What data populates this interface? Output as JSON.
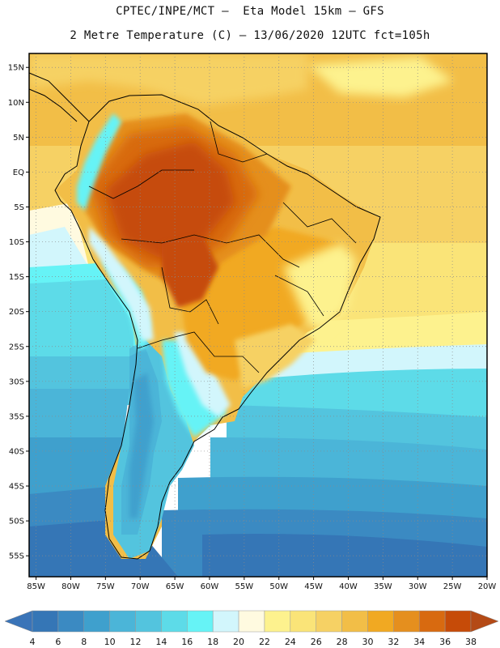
{
  "header": {
    "line1": "CPTEC/INPE/MCT –  Eta Model 15km – GFS",
    "line2": "2 Metre Temperature (C) – 13/06/2020 12UTC fct=105h"
  },
  "map": {
    "lat_range": [
      -58,
      17
    ],
    "lon_range": [
      -86,
      -20
    ],
    "lat_labels": [
      {
        "value": 15,
        "text": "15N"
      },
      {
        "value": 10,
        "text": "10N"
      },
      {
        "value": 5,
        "text": "5N"
      },
      {
        "value": 0,
        "text": "EQ"
      },
      {
        "value": -5,
        "text": "5S"
      },
      {
        "value": -10,
        "text": "10S"
      },
      {
        "value": -15,
        "text": "15S"
      },
      {
        "value": -20,
        "text": "20S"
      },
      {
        "value": -25,
        "text": "25S"
      },
      {
        "value": -30,
        "text": "30S"
      },
      {
        "value": -35,
        "text": "35S"
      },
      {
        "value": -40,
        "text": "40S"
      },
      {
        "value": -45,
        "text": "45S"
      },
      {
        "value": -50,
        "text": "50S"
      },
      {
        "value": -55,
        "text": "55S"
      }
    ],
    "lon_labels": [
      {
        "value": -85,
        "text": "85W"
      },
      {
        "value": -80,
        "text": "80W"
      },
      {
        "value": -75,
        "text": "75W"
      },
      {
        "value": -70,
        "text": "70W"
      },
      {
        "value": -65,
        "text": "65W"
      },
      {
        "value": -60,
        "text": "60W"
      },
      {
        "value": -55,
        "text": "55W"
      },
      {
        "value": -50,
        "text": "50W"
      },
      {
        "value": -45,
        "text": "45W"
      },
      {
        "value": -40,
        "text": "40W"
      },
      {
        "value": -35,
        "text": "35W"
      },
      {
        "value": -30,
        "text": "30W"
      },
      {
        "value": -25,
        "text": "25W"
      },
      {
        "value": -20,
        "text": "20W"
      }
    ],
    "colors": {
      "t_lt4": "#3a74b8",
      "t4": "#3576b6",
      "t6": "#3b8ac2",
      "t8": "#3fa0cd",
      "t10": "#4bb5d8",
      "t12": "#53c4de",
      "t14": "#5ddbe8",
      "t16": "#66f3f6",
      "t18": "#d2f6fc",
      "t20": "#fffae0",
      "t22": "#fdf28e",
      "t24": "#fae478",
      "t26": "#f6d164",
      "t28": "#f2be47",
      "t30": "#f1a922",
      "t32": "#e58f1e",
      "t34": "#d86a10",
      "t36": "#c64b08",
      "t38": "#b44a16"
    }
  },
  "colorbar": {
    "labels": [
      "4",
      "6",
      "8",
      "10",
      "12",
      "14",
      "16",
      "18",
      "20",
      "22",
      "24",
      "26",
      "28",
      "30",
      "32",
      "34",
      "36",
      "38"
    ],
    "colors": [
      "#3576b6",
      "#3b8ac2",
      "#3fa0cd",
      "#4bb5d8",
      "#53c4de",
      "#5ddbe8",
      "#66f3f6",
      "#d2f6fc",
      "#fffae0",
      "#fdf28e",
      "#fae478",
      "#f6d164",
      "#f2be47",
      "#f1a922",
      "#e58f1e",
      "#d86a10",
      "#c64b08"
    ],
    "low_end_color": "#3a74b8",
    "high_end_color": "#b44a16"
  }
}
